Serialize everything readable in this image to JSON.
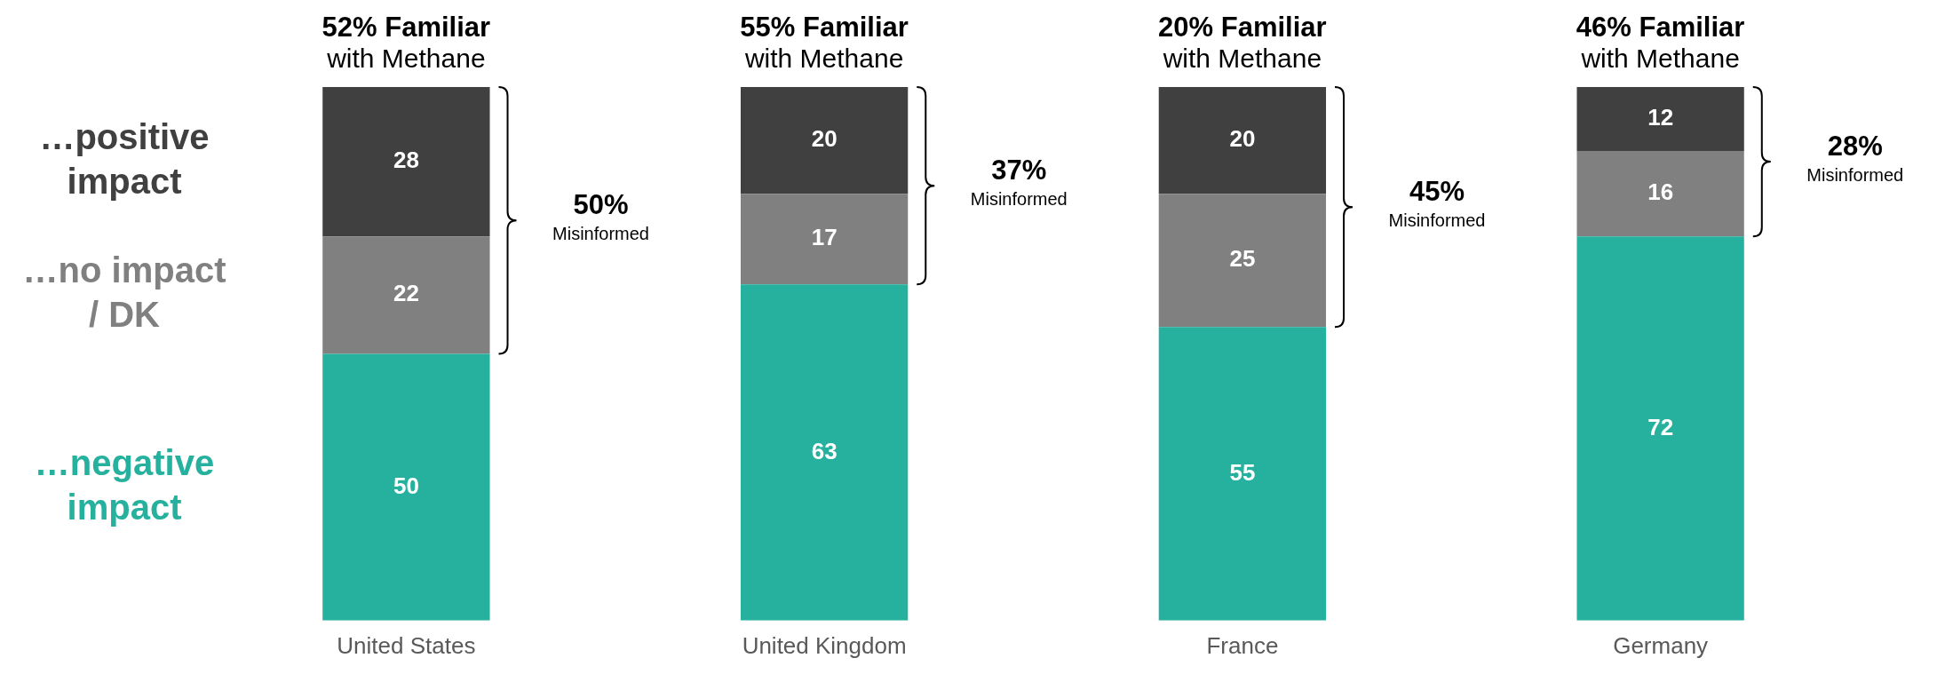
{
  "chart_data": {
    "type": "bar",
    "stacked": true,
    "categories": [
      "United States",
      "United Kingdom",
      "France",
      "Germany"
    ],
    "series": [
      {
        "name": "…negative impact",
        "color": "#26b09e",
        "values": [
          50,
          63,
          55,
          72
        ]
      },
      {
        "name": "…no impact / DK",
        "color": "#808080",
        "values": [
          22,
          17,
          25,
          16
        ]
      },
      {
        "name": "…positive impact",
        "color": "#404040",
        "values": [
          28,
          20,
          20,
          12
        ]
      }
    ],
    "data_labels": true,
    "legend": "left",
    "grid": false,
    "annotations": [
      {
        "text": "52% Familiar\nwith Methane",
        "x": "United States",
        "y": 100
      },
      {
        "text": "55% Familiar\nwith Methane",
        "x": "United Kingdom",
        "y": 100
      },
      {
        "text": "20% Familiar\nwith Methane",
        "x": "France",
        "y": 100
      },
      {
        "text": "46% Familiar\nwith Methane",
        "x": "Germany",
        "y": 100
      },
      "50%\nMisinformed",
      "37%\nMisinformed",
      "45%\nMisinformed",
      "28%\nMisinformed"
    ]
  }
}
